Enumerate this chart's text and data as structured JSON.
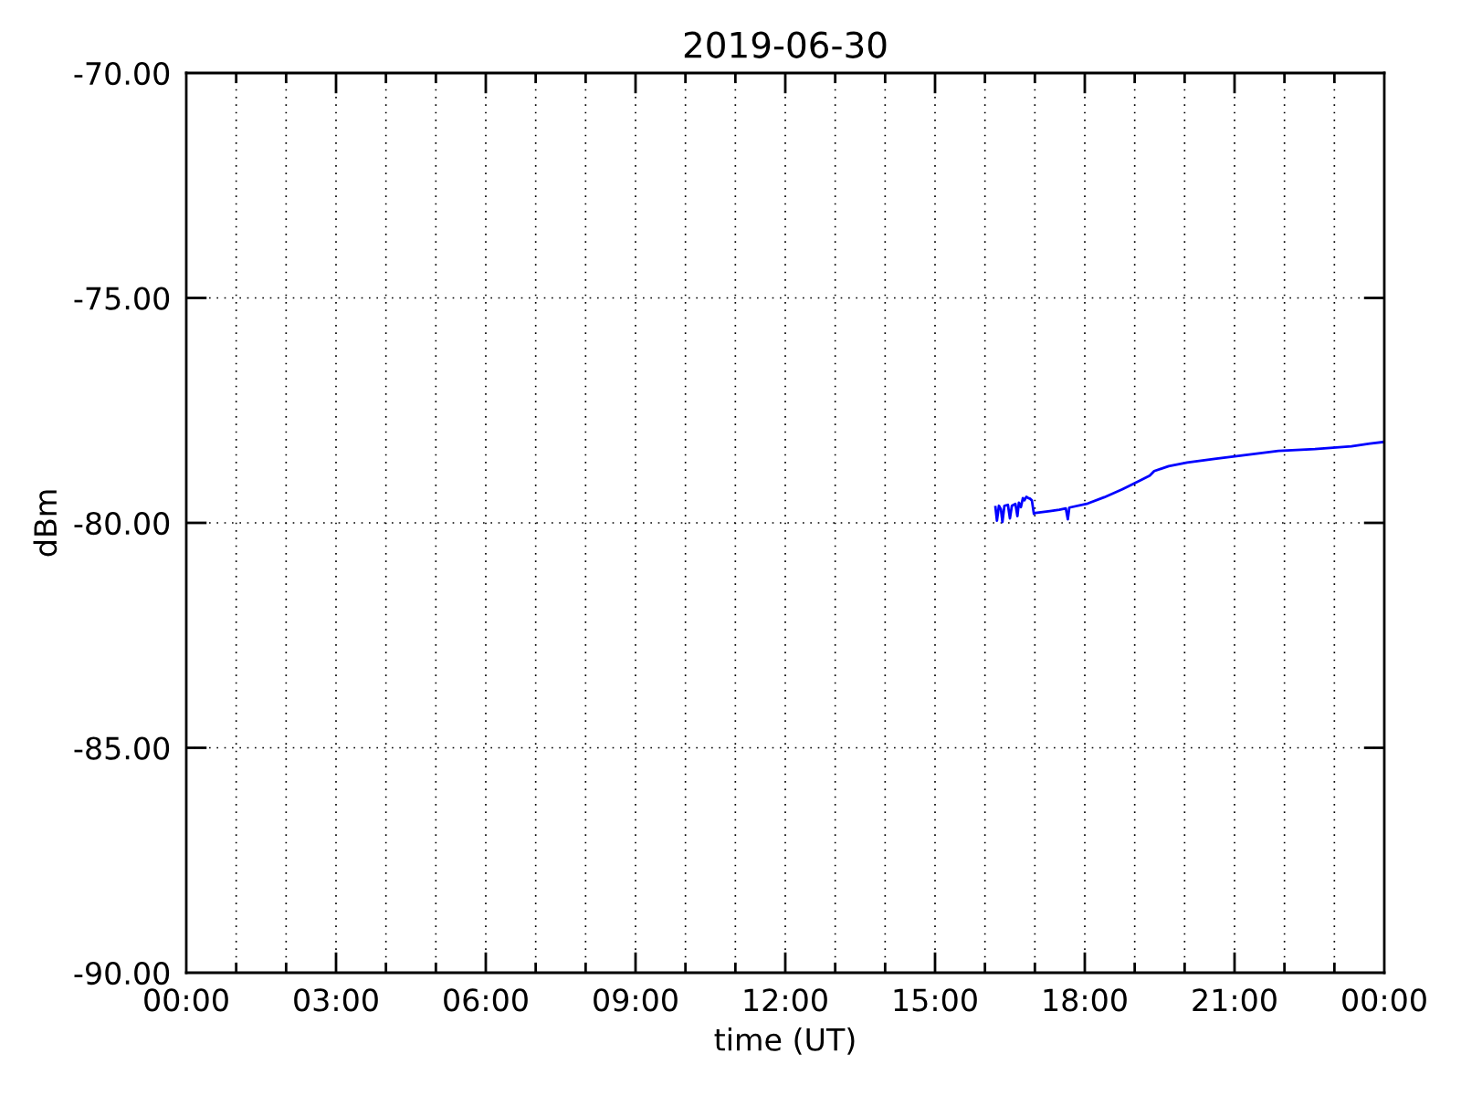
{
  "chart_data": {
    "type": "line",
    "title": "2019-06-30",
    "xlabel": "time (UT)",
    "ylabel": "dBm",
    "series": [
      {
        "color": "#0000ff",
        "x": [
          16.21,
          16.24,
          16.28,
          16.32,
          16.35,
          16.39,
          16.46,
          16.5,
          16.54,
          16.61,
          16.65,
          16.68,
          16.72,
          16.76,
          16.79,
          16.83,
          16.87,
          16.9,
          16.94,
          16.98,
          17.01,
          17.3,
          17.49,
          17.62,
          17.66,
          17.69,
          18.06,
          18.39,
          18.76,
          19.12,
          19.3,
          19.39,
          19.68,
          20.05,
          20.6,
          21.15,
          21.88,
          22.61,
          23.34,
          23.71,
          24.0
        ],
        "values": [
          -79.65,
          -79.95,
          -79.62,
          -79.7,
          -79.98,
          -79.62,
          -79.6,
          -79.9,
          -79.62,
          -79.58,
          -79.85,
          -79.55,
          -79.65,
          -79.45,
          -79.5,
          -79.42,
          -79.45,
          -79.46,
          -79.5,
          -79.8,
          -79.78,
          -79.74,
          -79.71,
          -79.68,
          -79.92,
          -79.66,
          -79.57,
          -79.43,
          -79.25,
          -79.05,
          -78.95,
          -78.85,
          -78.74,
          -78.66,
          -78.58,
          -78.5,
          -78.4,
          -78.36,
          -78.3,
          -78.24,
          -78.2
        ]
      }
    ],
    "xlim": [
      0,
      24
    ],
    "xticks": [
      {
        "value": 0,
        "label": "00:00"
      },
      {
        "value": 1,
        "label": null
      },
      {
        "value": 2,
        "label": null
      },
      {
        "value": 3,
        "label": "03:00"
      },
      {
        "value": 4,
        "label": null
      },
      {
        "value": 5,
        "label": null
      },
      {
        "value": 6,
        "label": "06:00"
      },
      {
        "value": 7,
        "label": null
      },
      {
        "value": 8,
        "label": null
      },
      {
        "value": 9,
        "label": "09:00"
      },
      {
        "value": 10,
        "label": null
      },
      {
        "value": 11,
        "label": null
      },
      {
        "value": 12,
        "label": "12:00"
      },
      {
        "value": 13,
        "label": null
      },
      {
        "value": 14,
        "label": null
      },
      {
        "value": 15,
        "label": "15:00"
      },
      {
        "value": 16,
        "label": null
      },
      {
        "value": 17,
        "label": null
      },
      {
        "value": 18,
        "label": "18:00"
      },
      {
        "value": 19,
        "label": null
      },
      {
        "value": 20,
        "label": null
      },
      {
        "value": 21,
        "label": "21:00"
      },
      {
        "value": 22,
        "label": null
      },
      {
        "value": 23,
        "label": null
      },
      {
        "value": 24,
        "label": "00:00"
      }
    ],
    "ylim": [
      -90,
      -70
    ],
    "yticks": [
      {
        "value": -90,
        "label": "-90.00"
      },
      {
        "value": -85,
        "label": "-85.00"
      },
      {
        "value": -80,
        "label": "-80.00"
      },
      {
        "value": -75,
        "label": "-75.00"
      },
      {
        "value": -70,
        "label": "-70.00"
      }
    ],
    "grid": true,
    "legend": false,
    "marker": "none",
    "line_style": "solid"
  }
}
